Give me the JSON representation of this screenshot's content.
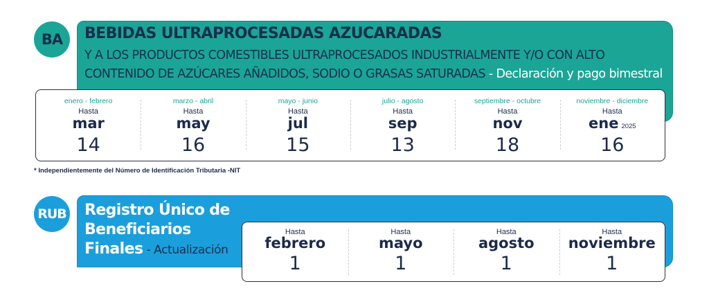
{
  "ba": {
    "badge": "BA",
    "title": "BEBIDAS ULTRAPROCESADAS AZUCARADAS",
    "subtitle": "Y A LOS PRODUCTOS COMESTIBLES ULTRAPROCESADOS INDUSTRIALMENTE Y/O CON ALTO CONTENIDO DE AZÚCARES AÑADIDOS, SODIO O GRASAS SATURADAS",
    "subtitle_suffix": " - Declaración y pago bimestral",
    "deadlines": [
      {
        "period": "enero - febrero",
        "hasta": "Hasta",
        "month": "mar",
        "year": "",
        "day": "14"
      },
      {
        "period": "marzo - abril",
        "hasta": "Hasta",
        "month": "may",
        "year": "",
        "day": "16"
      },
      {
        "period": "mayo - junio",
        "hasta": "Hasta",
        "month": "jul",
        "year": "",
        "day": "15"
      },
      {
        "period": "julio - agosto",
        "hasta": "Hasta",
        "month": "sep",
        "year": "",
        "day": "13"
      },
      {
        "period": "septiembre - octubre",
        "hasta": "Hasta",
        "month": "nov",
        "year": "",
        "day": "18"
      },
      {
        "period": "noviembre - diciembre",
        "hasta": "Hasta",
        "month": "ene",
        "year": "2025",
        "day": "16"
      }
    ],
    "note": "* Independientemente del Número de Identificación Tributaria -NIT",
    "colors": {
      "banner": "#1aa597",
      "text_dark": "#16304f"
    }
  },
  "rub": {
    "badge": "RUB",
    "title": "Registro Único de Beneficiarios Finales",
    "title_suffix": " - Actualización",
    "deadlines": [
      {
        "hasta": "Hasta",
        "month": "febrero",
        "day": "1"
      },
      {
        "hasta": "Hasta",
        "month": "mayo",
        "day": "1"
      },
      {
        "hasta": "Hasta",
        "month": "agosto",
        "day": "1"
      },
      {
        "hasta": "Hasta",
        "month": "noviembre",
        "day": "1"
      }
    ],
    "colors": {
      "banner": "#1b9fdc"
    }
  }
}
